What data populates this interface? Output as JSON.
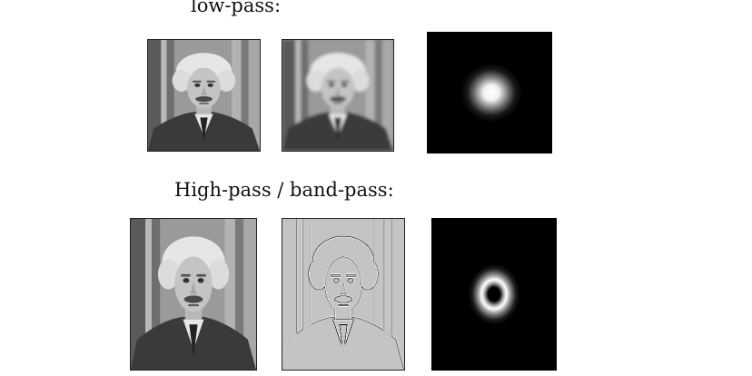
{
  "sections": [
    {
      "label": "low-pass:"
    },
    {
      "label": "High-pass / band-pass:"
    }
  ],
  "colors": {
    "background": "#ffffff",
    "filter_background": "#000000",
    "filter_passband": "#ffffff"
  }
}
